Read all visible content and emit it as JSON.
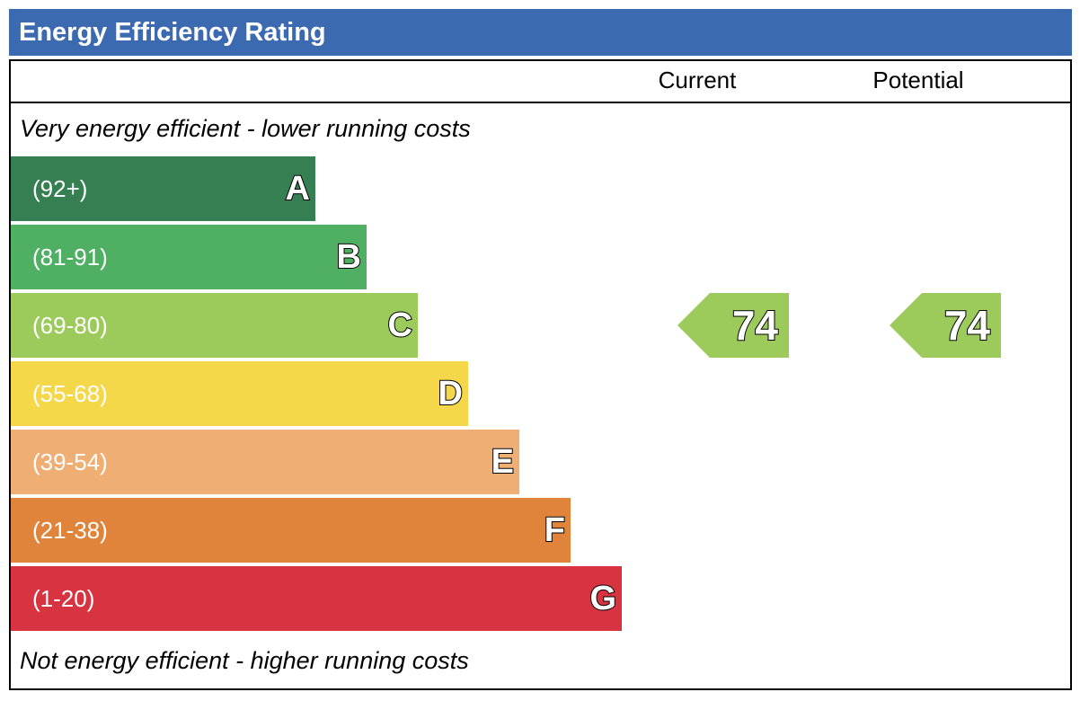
{
  "title": "Energy Efficiency Rating",
  "columns": {
    "current": "Current",
    "potential": "Potential"
  },
  "notes": {
    "top": "Very energy efficient - lower running costs",
    "bottom": "Not energy efficient - higher running costs"
  },
  "colors": {
    "title_bar": "#3c6ab0",
    "A": "#357f52",
    "B": "#4fb064",
    "C": "#9ccb5c",
    "D": "#f5d84a",
    "E": "#efae74",
    "F": "#df843a",
    "G": "#d73340"
  },
  "chart_data": {
    "type": "bar",
    "title": "Energy Efficiency Rating",
    "categories": [
      "A",
      "B",
      "C",
      "D",
      "E",
      "F",
      "G"
    ],
    "ranges": [
      "(92+)",
      "(81-91)",
      "(69-80)",
      "(55-68)",
      "(39-54)",
      "(21-38)",
      "(1-20)"
    ],
    "current": {
      "value": "74",
      "band": "C"
    },
    "potential": {
      "value": "74",
      "band": "C"
    }
  }
}
